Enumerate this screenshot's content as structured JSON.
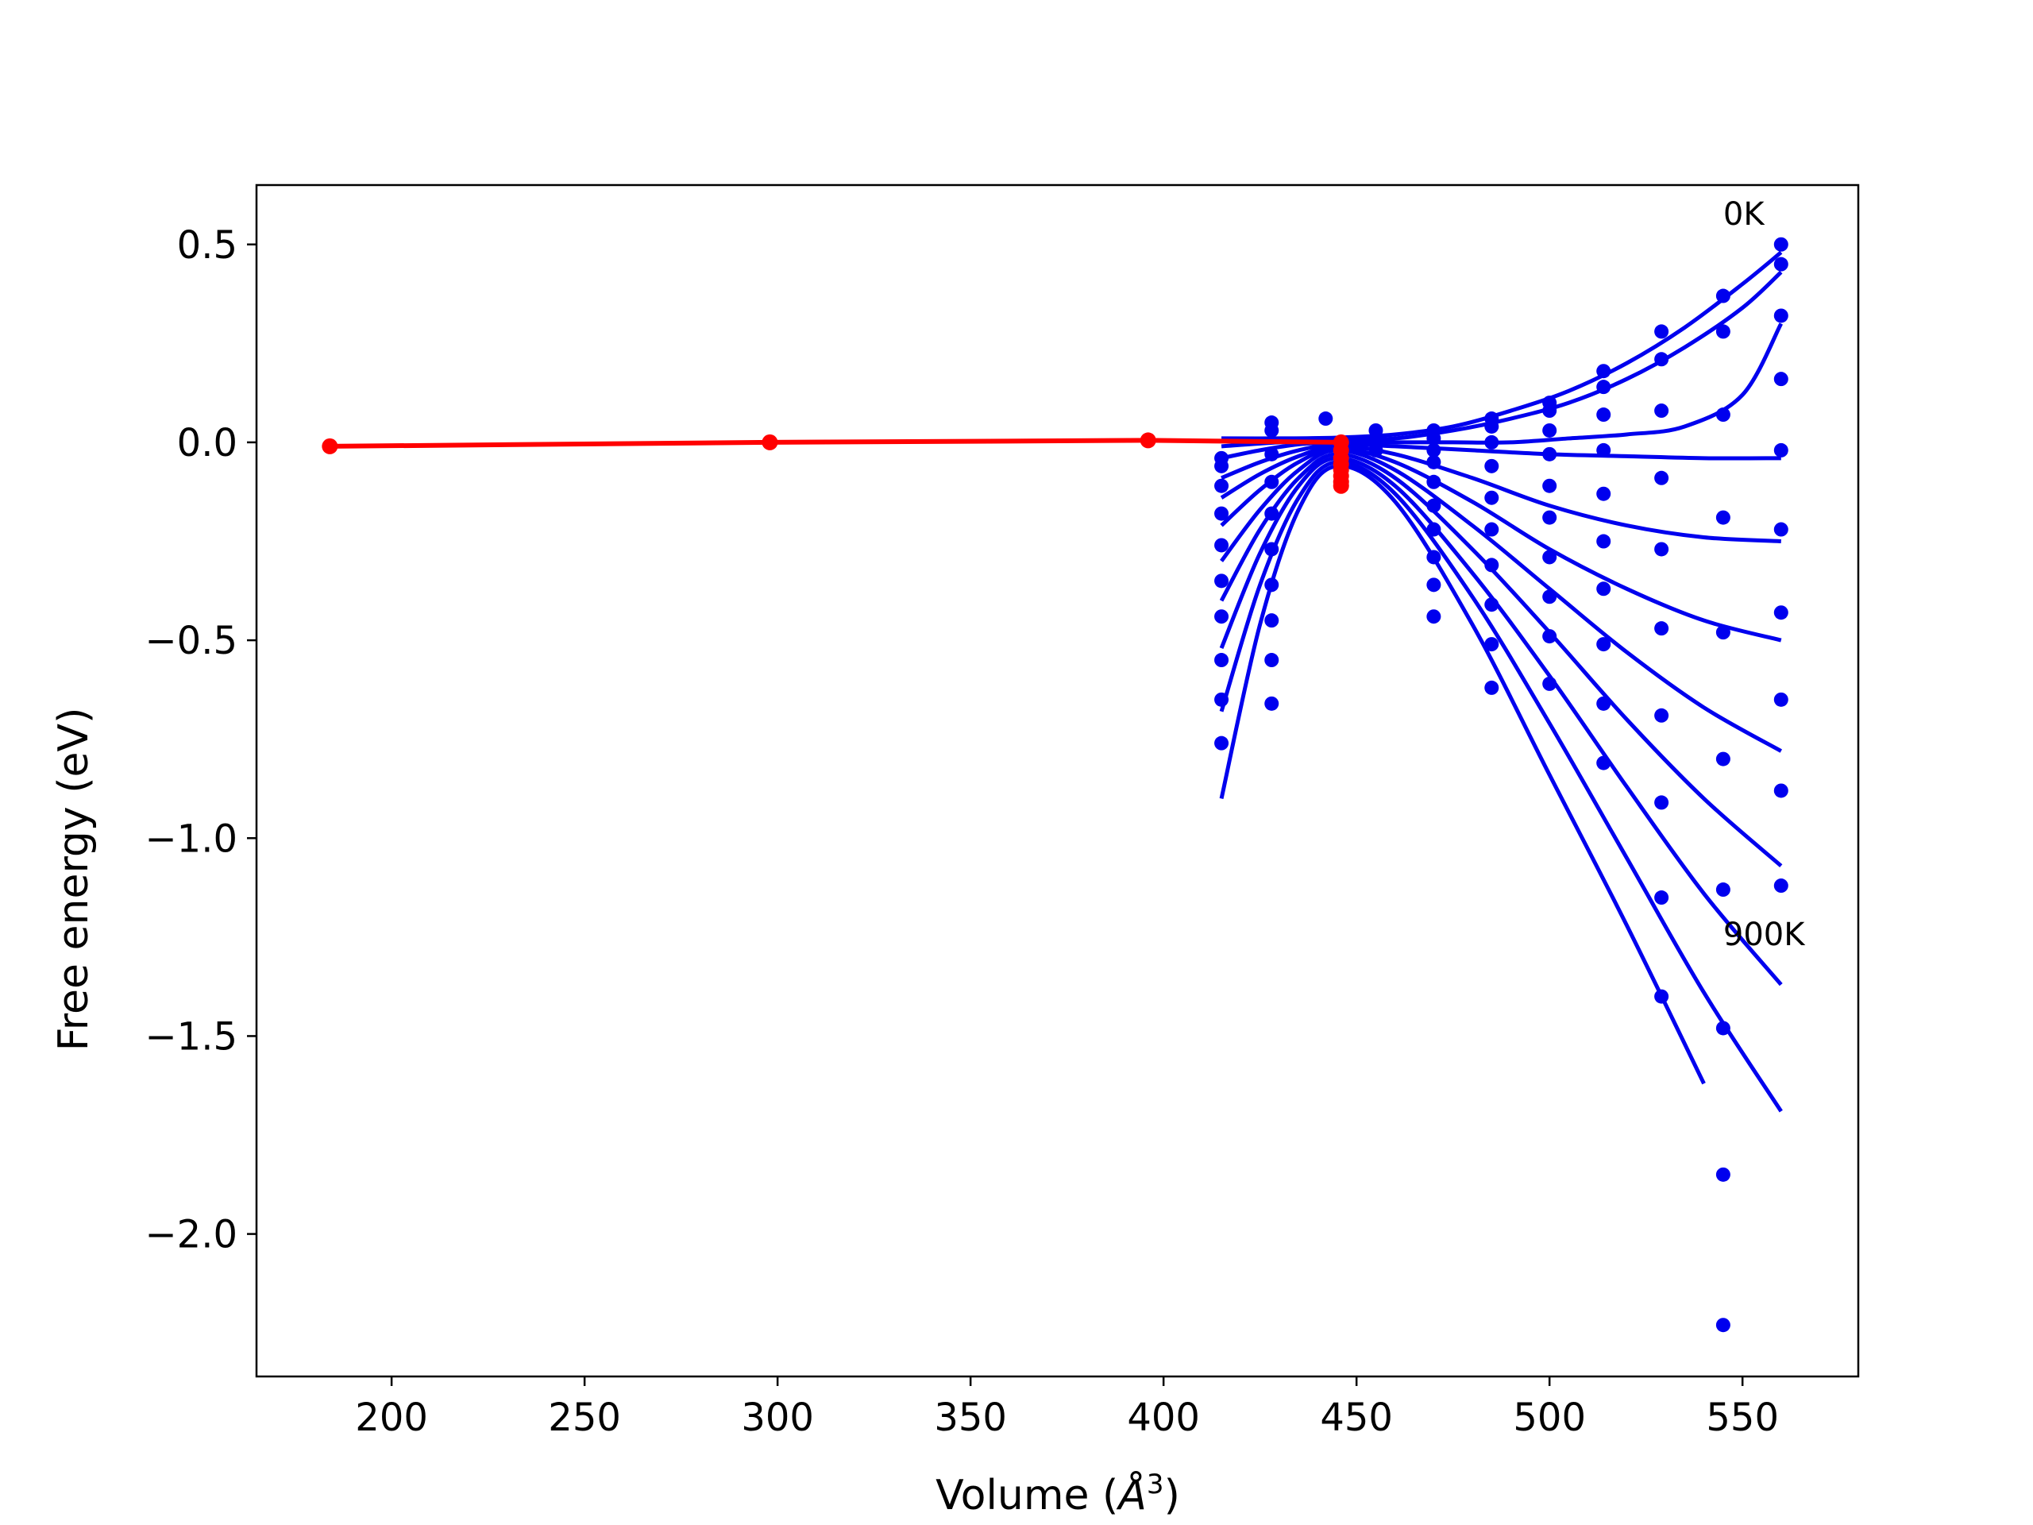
{
  "chart_data": {
    "type": "scatter",
    "xlabel_prefix": "Volume (",
    "xlabel_unit": "Å",
    "xlabel_exp": "3",
    "xlabel_suffix": ")",
    "ylabel": "Free energy (eV)",
    "xlim": [
      165,
      580
    ],
    "ylim": [
      -2.36,
      0.65
    ],
    "xticks": [
      200,
      250,
      300,
      350,
      400,
      450,
      500,
      550
    ],
    "xtick_labels": [
      "200",
      "250",
      "300",
      "350",
      "400",
      "450",
      "500",
      "550"
    ],
    "yticks": [
      0.5,
      0.0,
      -0.5,
      -1.0,
      -1.5,
      -2.0
    ],
    "ytick_labels": [
      "0.5",
      "0.0",
      "−0.5",
      "−1.0",
      "−1.5",
      "−2.0"
    ],
    "grid": false,
    "annotations": [
      {
        "text": "0K",
        "x": 545,
        "y": 0.55
      },
      {
        "text": "900K",
        "x": 545,
        "y": -1.27
      }
    ],
    "blue_points": [
      [
        415,
        -0.04
      ],
      [
        415,
        -0.06
      ],
      [
        415,
        -0.11
      ],
      [
        415,
        -0.18
      ],
      [
        415,
        -0.26
      ],
      [
        415,
        -0.35
      ],
      [
        415,
        -0.44
      ],
      [
        415,
        -0.55
      ],
      [
        415,
        -0.65
      ],
      [
        415,
        -0.76
      ],
      [
        428,
        0.05
      ],
      [
        428,
        0.03
      ],
      [
        428,
        -0.03
      ],
      [
        428,
        -0.1
      ],
      [
        428,
        -0.18
      ],
      [
        428,
        -0.27
      ],
      [
        428,
        -0.36
      ],
      [
        428,
        -0.45
      ],
      [
        428,
        -0.55
      ],
      [
        428,
        -0.66
      ],
      [
        442,
        0.06
      ],
      [
        455,
        0.03
      ],
      [
        455,
        0.01
      ],
      [
        455,
        -0.02
      ],
      [
        470,
        0.03
      ],
      [
        470,
        0.01
      ],
      [
        470,
        -0.02
      ],
      [
        470,
        -0.05
      ],
      [
        470,
        -0.1
      ],
      [
        470,
        -0.16
      ],
      [
        470,
        -0.22
      ],
      [
        470,
        -0.29
      ],
      [
        470,
        -0.36
      ],
      [
        470,
        -0.44
      ],
      [
        485,
        0.06
      ],
      [
        485,
        0.04
      ],
      [
        485,
        0.0
      ],
      [
        485,
        -0.06
      ],
      [
        485,
        -0.14
      ],
      [
        485,
        -0.22
      ],
      [
        485,
        -0.31
      ],
      [
        485,
        -0.41
      ],
      [
        485,
        -0.51
      ],
      [
        485,
        -0.62
      ],
      [
        500,
        0.1
      ],
      [
        500,
        0.08
      ],
      [
        500,
        0.03
      ],
      [
        500,
        -0.03
      ],
      [
        500,
        -0.11
      ],
      [
        500,
        -0.19
      ],
      [
        500,
        -0.29
      ],
      [
        500,
        -0.39
      ],
      [
        500,
        -0.49
      ],
      [
        500,
        -0.61
      ],
      [
        514,
        0.18
      ],
      [
        514,
        0.14
      ],
      [
        514,
        0.07
      ],
      [
        514,
        -0.02
      ],
      [
        514,
        -0.13
      ],
      [
        514,
        -0.25
      ],
      [
        514,
        -0.37
      ],
      [
        514,
        -0.51
      ],
      [
        514,
        -0.66
      ],
      [
        514,
        -0.81
      ],
      [
        529,
        0.28
      ],
      [
        529,
        0.21
      ],
      [
        529,
        0.08
      ],
      [
        529,
        -0.09
      ],
      [
        529,
        -0.27
      ],
      [
        529,
        -0.47
      ],
      [
        529,
        -0.69
      ],
      [
        529,
        -0.91
      ],
      [
        529,
        -1.15
      ],
      [
        529,
        -1.4
      ],
      [
        545,
        0.37
      ],
      [
        545,
        0.28
      ],
      [
        545,
        0.07
      ],
      [
        545,
        -0.19
      ],
      [
        545,
        -0.48
      ],
      [
        545,
        -0.8
      ],
      [
        545,
        -1.13
      ],
      [
        545,
        -1.48
      ],
      [
        545,
        -1.85
      ],
      [
        545,
        -2.23
      ],
      [
        560,
        0.5
      ],
      [
        560,
        0.45
      ],
      [
        560,
        0.32
      ],
      [
        560,
        0.16
      ],
      [
        560,
        -0.02
      ],
      [
        560,
        -0.22
      ],
      [
        560,
        -0.43
      ],
      [
        560,
        -0.65
      ],
      [
        560,
        -0.88
      ],
      [
        560,
        -1.12
      ]
    ],
    "blue_curves": [
      [
        [
          415,
          0.01
        ],
        [
          430,
          0.01
        ],
        [
          445,
          0.012
        ],
        [
          460,
          0.02
        ],
        [
          475,
          0.04
        ],
        [
          490,
          0.08
        ],
        [
          505,
          0.13
        ],
        [
          520,
          0.2
        ],
        [
          535,
          0.29
        ],
        [
          550,
          0.4
        ],
        [
          560,
          0.48
        ]
      ],
      [
        [
          415,
          -0.01
        ],
        [
          430,
          0.0
        ],
        [
          445,
          0.005
        ],
        [
          460,
          0.01
        ],
        [
          475,
          0.03
        ],
        [
          490,
          0.06
        ],
        [
          505,
          0.1
        ],
        [
          520,
          0.16
        ],
        [
          535,
          0.24
        ],
        [
          550,
          0.34
        ],
        [
          560,
          0.43
        ]
      ],
      [
        [
          415,
          -0.04
        ],
        [
          425,
          -0.02
        ],
        [
          435,
          -0.005
        ],
        [
          445,
          0.0
        ],
        [
          460,
          0.0
        ],
        [
          475,
          0.0
        ],
        [
          490,
          0.0
        ],
        [
          505,
          0.01
        ],
        [
          520,
          0.02
        ],
        [
          535,
          0.04
        ],
        [
          550,
          0.12
        ],
        [
          560,
          0.3
        ]
      ],
      [
        [
          415,
          -0.09
        ],
        [
          425,
          -0.05
        ],
        [
          435,
          -0.02
        ],
        [
          445,
          -0.005
        ],
        [
          460,
          -0.01
        ],
        [
          480,
          -0.02
        ],
        [
          500,
          -0.03
        ],
        [
          520,
          -0.035
        ],
        [
          540,
          -0.04
        ],
        [
          560,
          -0.04
        ]
      ],
      [
        [
          415,
          -0.14
        ],
        [
          425,
          -0.08
        ],
        [
          435,
          -0.035
        ],
        [
          445,
          -0.01
        ],
        [
          460,
          -0.03
        ],
        [
          480,
          -0.09
        ],
        [
          500,
          -0.16
        ],
        [
          520,
          -0.21
        ],
        [
          540,
          -0.24
        ],
        [
          560,
          -0.25
        ]
      ],
      [
        [
          415,
          -0.21
        ],
        [
          425,
          -0.12
        ],
        [
          435,
          -0.05
        ],
        [
          445,
          -0.015
        ],
        [
          460,
          -0.05
        ],
        [
          480,
          -0.15
        ],
        [
          500,
          -0.27
        ],
        [
          520,
          -0.37
        ],
        [
          540,
          -0.45
        ],
        [
          560,
          -0.5
        ]
      ],
      [
        [
          415,
          -0.3
        ],
        [
          425,
          -0.17
        ],
        [
          435,
          -0.07
        ],
        [
          445,
          -0.02
        ],
        [
          460,
          -0.07
        ],
        [
          480,
          -0.21
        ],
        [
          500,
          -0.37
        ],
        [
          520,
          -0.53
        ],
        [
          540,
          -0.67
        ],
        [
          560,
          -0.78
        ]
      ],
      [
        [
          415,
          -0.4
        ],
        [
          425,
          -0.22
        ],
        [
          435,
          -0.09
        ],
        [
          445,
          -0.03
        ],
        [
          460,
          -0.09
        ],
        [
          480,
          -0.27
        ],
        [
          500,
          -0.48
        ],
        [
          520,
          -0.7
        ],
        [
          540,
          -0.9
        ],
        [
          560,
          -1.07
        ]
      ],
      [
        [
          415,
          -0.52
        ],
        [
          425,
          -0.28
        ],
        [
          435,
          -0.11
        ],
        [
          445,
          -0.04
        ],
        [
          460,
          -0.11
        ],
        [
          480,
          -0.33
        ],
        [
          500,
          -0.59
        ],
        [
          520,
          -0.87
        ],
        [
          540,
          -1.14
        ],
        [
          560,
          -1.37
        ]
      ],
      [
        [
          415,
          -0.68
        ],
        [
          425,
          -0.36
        ],
        [
          435,
          -0.14
        ],
        [
          445,
          -0.05
        ],
        [
          460,
          -0.13
        ],
        [
          480,
          -0.39
        ],
        [
          500,
          -0.71
        ],
        [
          520,
          -1.05
        ],
        [
          540,
          -1.39
        ],
        [
          560,
          -1.69
        ]
      ],
      [
        [
          415,
          -0.9
        ],
        [
          425,
          -0.46
        ],
        [
          435,
          -0.17
        ],
        [
          445,
          -0.06
        ],
        [
          460,
          -0.15
        ],
        [
          480,
          -0.46
        ],
        [
          500,
          -0.84
        ],
        [
          520,
          -1.22
        ],
        [
          540,
          -1.62
        ]
      ]
    ],
    "red_line": [
      [
        184,
        -0.01
      ],
      [
        298,
        0.0
      ],
      [
        396,
        0.005
      ],
      [
        446,
        0.0
      ]
    ],
    "red_points": [
      [
        184,
        -0.01
      ],
      [
        298,
        0.0
      ],
      [
        396,
        0.005
      ],
      [
        446,
        0.0
      ],
      [
        446,
        -0.02
      ],
      [
        446,
        -0.04
      ],
      [
        446,
        -0.055
      ],
      [
        446,
        -0.07
      ],
      [
        446,
        -0.085
      ],
      [
        446,
        -0.1
      ],
      [
        446,
        -0.11
      ]
    ],
    "colors": {
      "blue": "#0000ee",
      "red": "#ff0000"
    }
  }
}
